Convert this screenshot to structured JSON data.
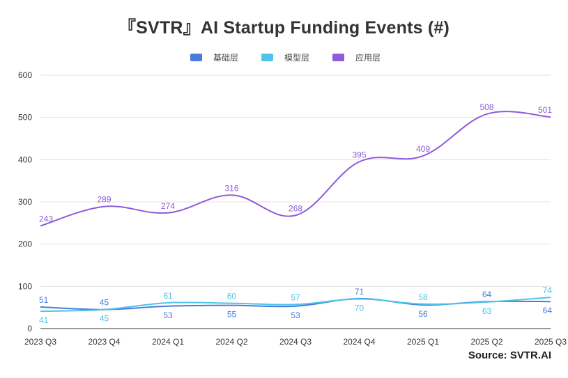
{
  "title": "『SVTR』AI Startup Funding Events (#)",
  "source": "Source:  SVTR.AI",
  "chart_data": {
    "type": "line",
    "title": "『SVTR』AI Startup Funding Events (#)",
    "xlabel": "",
    "ylabel": "",
    "categories": [
      "2023 Q3",
      "2023 Q4",
      "2024 Q1",
      "2024 Q2",
      "2024 Q3",
      "2024 Q4",
      "2025 Q1",
      "2025 Q2",
      "2025 Q3"
    ],
    "ylim": [
      0,
      600
    ],
    "yticks": [
      0,
      100,
      200,
      300,
      400,
      500,
      600
    ],
    "grid": true,
    "legend_position": "top-center",
    "series": [
      {
        "name": "基础层",
        "color": "#4a7bdc",
        "values": [
          51,
          45,
          53,
          55,
          53,
          71,
          56,
          64,
          64
        ]
      },
      {
        "name": "模型层",
        "color": "#4fc3ea",
        "values": [
          41,
          45,
          61,
          60,
          57,
          70,
          58,
          63,
          74
        ]
      },
      {
        "name": "应用层",
        "color": "#8f5bd9",
        "values": [
          243,
          289,
          274,
          316,
          268,
          395,
          409,
          508,
          501
        ]
      }
    ]
  }
}
